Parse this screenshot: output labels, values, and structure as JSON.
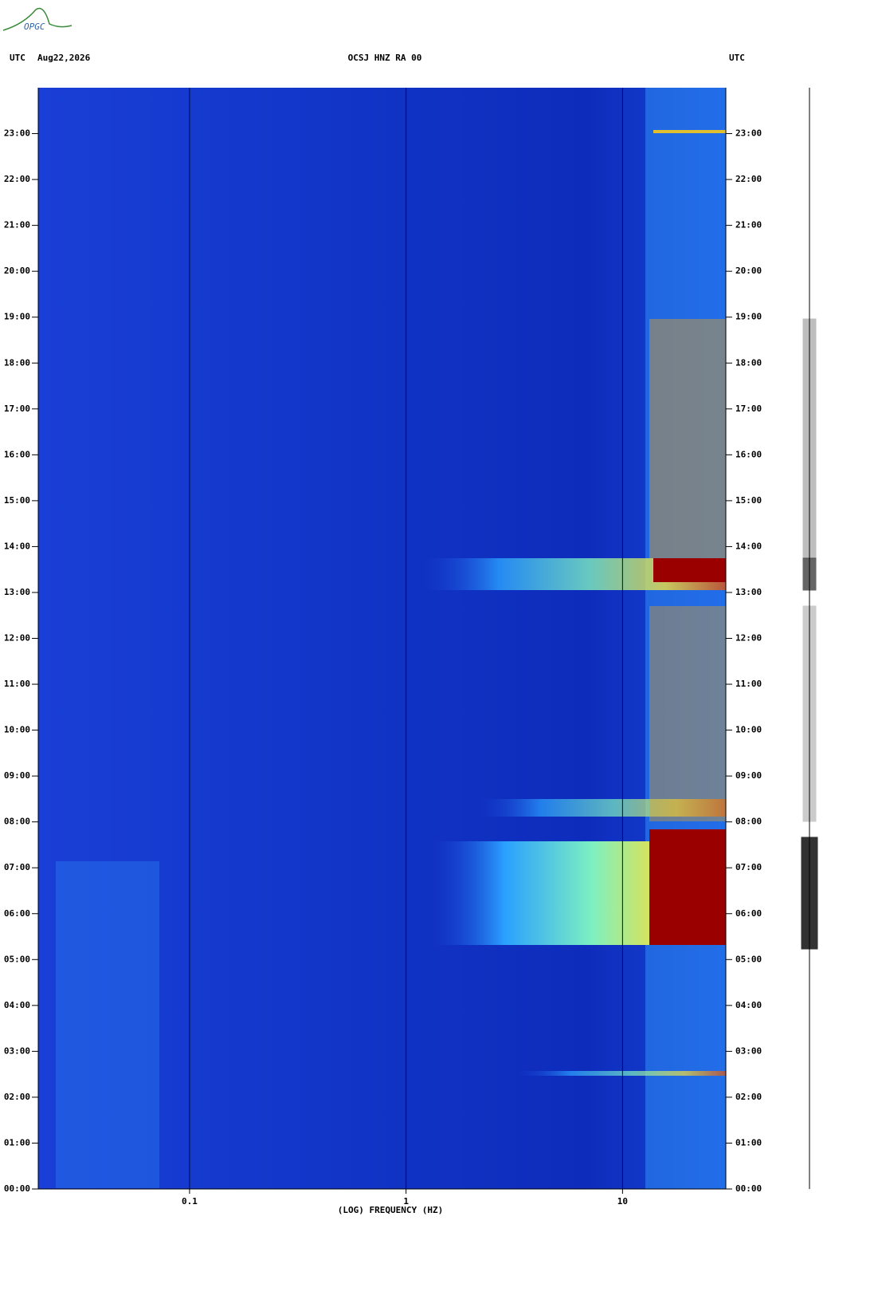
{
  "logo": "OPGC",
  "chart_data": {
    "type": "spectrogram",
    "title": "OCSJ HNZ RA 00",
    "timezone_left": "UTC",
    "date": "Aug22,2026",
    "timezone_right": "UTC",
    "x_label": "(LOG) FREQUENCY (HZ)",
    "xscale": "log",
    "xlim": [
      0.02,
      30
    ],
    "xticks": [
      {
        "value": 0.1,
        "label": "0.1"
      },
      1,
      10
    ],
    "ylim": [
      0,
      24
    ],
    "yticks": [
      {
        "value": 0,
        "label": "00:00"
      },
      {
        "value": 1,
        "label": "01:00"
      },
      {
        "value": 2,
        "label": "02:00"
      },
      {
        "value": 3,
        "label": "03:00"
      },
      {
        "value": 4,
        "label": "04:00"
      },
      {
        "value": 5,
        "label": "05:00"
      },
      {
        "value": 6,
        "label": "06:00"
      },
      {
        "value": 7,
        "label": "07:00"
      },
      {
        "value": 8,
        "label": "08:00"
      },
      {
        "value": 9,
        "label": "09:00"
      },
      {
        "value": 10,
        "label": "10:00"
      },
      {
        "value": 11,
        "label": "11:00"
      },
      {
        "value": 12,
        "label": "12:00"
      },
      {
        "value": 13,
        "label": "13:00"
      },
      {
        "value": 14,
        "label": "14:00"
      },
      {
        "value": 15,
        "label": "15:00"
      },
      {
        "value": 16,
        "label": "16:00"
      },
      {
        "value": 17,
        "label": "17:00"
      },
      {
        "value": 18,
        "label": "18:00"
      },
      {
        "value": 19,
        "label": "19:00"
      },
      {
        "value": 20,
        "label": "20:00"
      },
      {
        "value": 21,
        "label": "21:00"
      },
      {
        "value": 22,
        "label": "22:00"
      },
      {
        "value": 23,
        "label": "23:00"
      }
    ],
    "grid": true
  }
}
